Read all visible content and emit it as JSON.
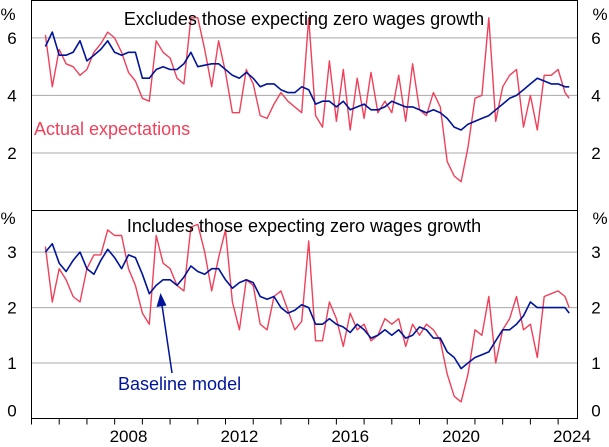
{
  "chart_data": {
    "type": "line",
    "colors": {
      "actual": "#f0405a",
      "baseline": "#00149b",
      "grid": "#a8a8a8",
      "frame": "#000000"
    },
    "x_ticks": [
      "2008",
      "2012",
      "2016",
      "2020",
      "2024"
    ],
    "xlim": [
      2005,
      2024.7
    ],
    "panels": [
      {
        "title": "Excludes those expecting zero wages growth",
        "unit_left": "%",
        "unit_right": "%",
        "ylim": [
          0,
          7.3
        ],
        "y_ticks": [
          2,
          4,
          6
        ],
        "y_tick_labels": [
          "2",
          "4",
          "6"
        ],
        "annotation": "Actual expectations",
        "series": [
          {
            "name": "Actual expectations",
            "key": "actual",
            "x": [
              2005.5,
              2005.75,
              2006.0,
              2006.25,
              2006.5,
              2006.75,
              2007.0,
              2007.25,
              2007.5,
              2007.75,
              2008.0,
              2008.25,
              2008.5,
              2008.75,
              2009.0,
              2009.25,
              2009.5,
              2009.75,
              2010.0,
              2010.25,
              2010.5,
              2010.75,
              2011.0,
              2011.25,
              2011.5,
              2011.75,
              2012.0,
              2012.25,
              2012.5,
              2012.75,
              2013.0,
              2013.25,
              2013.5,
              2013.75,
              2014.0,
              2014.25,
              2014.5,
              2014.75,
              2015.0,
              2015.25,
              2015.5,
              2015.75,
              2016.0,
              2016.25,
              2016.5,
              2016.75,
              2017.0,
              2017.25,
              2017.5,
              2017.75,
              2018.0,
              2018.25,
              2018.5,
              2018.75,
              2019.0,
              2019.25,
              2019.5,
              2019.75,
              2020.0,
              2020.25,
              2020.5,
              2020.75,
              2021.0,
              2021.25,
              2021.5,
              2021.75,
              2022.0,
              2022.25,
              2022.5,
              2022.75,
              2023.0,
              2023.25,
              2023.5,
              2023.75,
              2024.0,
              2024.25,
              2024.4
            ],
            "values": [
              6.1,
              4.3,
              5.6,
              5.1,
              5.0,
              4.7,
              4.9,
              5.5,
              5.8,
              6.2,
              6.0,
              5.5,
              4.8,
              4.5,
              3.9,
              3.8,
              5.9,
              5.5,
              5.3,
              4.6,
              4.4,
              6.7,
              6.7,
              5.6,
              4.3,
              5.9,
              4.8,
              3.4,
              3.4,
              4.9,
              4.4,
              3.3,
              3.2,
              3.7,
              4.1,
              3.8,
              3.6,
              3.4,
              6.7,
              3.3,
              2.9,
              5.2,
              3.1,
              4.9,
              2.8,
              4.6,
              3.2,
              4.8,
              3.4,
              3.8,
              3.4,
              4.7,
              3.1,
              5.1,
              3.5,
              3.3,
              4.1,
              3.6,
              1.7,
              1.2,
              1.0,
              2.2,
              3.9,
              4.0,
              6.7,
              3.1,
              4.3,
              4.7,
              4.9,
              2.9,
              4.0,
              2.8,
              4.7,
              4.7,
              4.9,
              4.1,
              3.9
            ]
          },
          {
            "name": "Baseline model",
            "key": "baseline",
            "x": [
              2005.5,
              2005.75,
              2006.0,
              2006.25,
              2006.5,
              2006.75,
              2007.0,
              2007.25,
              2007.5,
              2007.75,
              2008.0,
              2008.25,
              2008.5,
              2008.75,
              2009.0,
              2009.25,
              2009.5,
              2009.75,
              2010.0,
              2010.25,
              2010.5,
              2010.75,
              2011.0,
              2011.25,
              2011.5,
              2011.75,
              2012.0,
              2012.25,
              2012.5,
              2012.75,
              2013.0,
              2013.25,
              2013.5,
              2013.75,
              2014.0,
              2014.25,
              2014.5,
              2014.75,
              2015.0,
              2015.25,
              2015.5,
              2015.75,
              2016.0,
              2016.25,
              2016.5,
              2016.75,
              2017.0,
              2017.25,
              2017.5,
              2017.75,
              2018.0,
              2018.25,
              2018.5,
              2018.75,
              2019.0,
              2019.25,
              2019.5,
              2019.75,
              2020.0,
              2020.25,
              2020.5,
              2020.75,
              2021.0,
              2021.25,
              2021.5,
              2021.75,
              2022.0,
              2022.25,
              2022.5,
              2022.75,
              2023.0,
              2023.25,
              2023.5,
              2023.75,
              2024.0,
              2024.25,
              2024.4
            ],
            "values": [
              5.7,
              6.2,
              5.4,
              5.4,
              5.5,
              5.9,
              5.2,
              5.4,
              5.6,
              5.9,
              5.5,
              5.4,
              5.5,
              5.5,
              4.6,
              4.6,
              4.9,
              5.0,
              4.9,
              4.9,
              5.1,
              5.5,
              5.0,
              5.05,
              5.1,
              5.1,
              4.9,
              4.7,
              4.6,
              4.8,
              4.6,
              4.3,
              4.4,
              4.4,
              4.2,
              4.1,
              4.1,
              4.3,
              4.2,
              3.7,
              3.8,
              3.8,
              3.6,
              3.8,
              3.5,
              3.6,
              3.7,
              3.5,
              3.5,
              3.6,
              3.8,
              3.7,
              3.6,
              3.6,
              3.5,
              3.4,
              3.5,
              3.4,
              3.2,
              2.9,
              2.8,
              3.0,
              3.1,
              3.2,
              3.3,
              3.5,
              3.7,
              3.9,
              4.0,
              4.2,
              4.4,
              4.6,
              4.5,
              4.4,
              4.4,
              4.3,
              4.3
            ]
          }
        ]
      },
      {
        "title": "Includes those expecting zero wages growth",
        "unit_left": "%",
        "unit_right": "%",
        "ylim": [
          0,
          3.75
        ],
        "y_ticks": [
          0,
          1,
          2,
          3
        ],
        "y_tick_labels": [
          "0",
          "1",
          "2",
          "3"
        ],
        "annotation": "Baseline model",
        "series": [
          {
            "name": "Actual expectations",
            "key": "actual",
            "x": [
              2005.5,
              2005.75,
              2006.0,
              2006.25,
              2006.5,
              2006.75,
              2007.0,
              2007.25,
              2007.5,
              2007.75,
              2008.0,
              2008.25,
              2008.5,
              2008.75,
              2009.0,
              2009.25,
              2009.5,
              2009.75,
              2010.0,
              2010.25,
              2010.5,
              2010.75,
              2011.0,
              2011.25,
              2011.5,
              2011.75,
              2012.0,
              2012.25,
              2012.5,
              2012.75,
              2013.0,
              2013.25,
              2013.5,
              2013.75,
              2014.0,
              2014.25,
              2014.5,
              2014.75,
              2015.0,
              2015.25,
              2015.5,
              2015.75,
              2016.0,
              2016.25,
              2016.5,
              2016.75,
              2017.0,
              2017.25,
              2017.5,
              2017.75,
              2018.0,
              2018.25,
              2018.5,
              2018.75,
              2019.0,
              2019.25,
              2019.5,
              2019.75,
              2020.0,
              2020.25,
              2020.5,
              2020.75,
              2021.0,
              2021.25,
              2021.5,
              2021.75,
              2022.0,
              2022.25,
              2022.5,
              2022.75,
              2023.0,
              2023.25,
              2023.5,
              2023.75,
              2024.0,
              2024.25,
              2024.4
            ],
            "values": [
              3.1,
              2.1,
              2.7,
              2.5,
              2.2,
              2.1,
              2.7,
              2.95,
              2.95,
              3.4,
              3.3,
              3.3,
              2.7,
              2.4,
              1.9,
              1.7,
              3.3,
              2.8,
              2.7,
              2.4,
              2.3,
              3.45,
              3.5,
              3.0,
              2.3,
              2.9,
              3.4,
              2.1,
              1.6,
              2.5,
              2.4,
              1.7,
              1.6,
              2.2,
              2.3,
              1.95,
              1.6,
              1.75,
              3.2,
              1.4,
              1.4,
              2.1,
              1.8,
              1.3,
              1.9,
              1.6,
              1.7,
              1.4,
              1.5,
              1.8,
              1.7,
              1.8,
              1.3,
              1.7,
              1.5,
              1.7,
              1.6,
              1.4,
              0.8,
              0.4,
              0.3,
              0.8,
              1.6,
              1.5,
              2.2,
              1.0,
              1.6,
              1.8,
              2.2,
              1.6,
              1.7,
              1.1,
              2.2,
              2.25,
              2.3,
              2.2,
              2.0
            ]
          },
          {
            "name": "Baseline model",
            "key": "baseline",
            "x": [
              2005.5,
              2005.75,
              2006.0,
              2006.25,
              2006.5,
              2006.75,
              2007.0,
              2007.25,
              2007.5,
              2007.75,
              2008.0,
              2008.25,
              2008.5,
              2008.75,
              2009.0,
              2009.25,
              2009.5,
              2009.75,
              2010.0,
              2010.25,
              2010.5,
              2010.75,
              2011.0,
              2011.25,
              2011.5,
              2011.75,
              2012.0,
              2012.25,
              2012.5,
              2012.75,
              2013.0,
              2013.25,
              2013.5,
              2013.75,
              2014.0,
              2014.25,
              2014.5,
              2014.75,
              2015.0,
              2015.25,
              2015.5,
              2015.75,
              2016.0,
              2016.25,
              2016.5,
              2016.75,
              2017.0,
              2017.25,
              2017.5,
              2017.75,
              2018.0,
              2018.25,
              2018.5,
              2018.75,
              2019.0,
              2019.25,
              2019.5,
              2019.75,
              2020.0,
              2020.25,
              2020.5,
              2020.75,
              2021.0,
              2021.25,
              2021.5,
              2021.75,
              2022.0,
              2022.25,
              2022.5,
              2022.75,
              2023.0,
              2023.25,
              2023.5,
              2023.75,
              2024.0,
              2024.25,
              2024.4
            ],
            "values": [
              3.0,
              3.15,
              2.8,
              2.65,
              2.85,
              3.0,
              2.7,
              2.6,
              2.85,
              3.05,
              2.9,
              2.7,
              2.95,
              2.9,
              2.6,
              2.25,
              2.4,
              2.5,
              2.5,
              2.4,
              2.55,
              2.75,
              2.65,
              2.6,
              2.7,
              2.7,
              2.5,
              2.35,
              2.45,
              2.5,
              2.45,
              2.2,
              2.15,
              2.2,
              2.0,
              1.9,
              1.95,
              2.05,
              2.0,
              1.7,
              1.7,
              1.8,
              1.7,
              1.65,
              1.55,
              1.7,
              1.6,
              1.45,
              1.5,
              1.6,
              1.5,
              1.6,
              1.45,
              1.5,
              1.65,
              1.6,
              1.45,
              1.45,
              1.2,
              1.1,
              0.9,
              1.0,
              1.1,
              1.15,
              1.2,
              1.4,
              1.6,
              1.6,
              1.7,
              1.85,
              2.1,
              2.0,
              2.0,
              2.0,
              2.0,
              2.0,
              1.9
            ]
          }
        ]
      }
    ]
  }
}
